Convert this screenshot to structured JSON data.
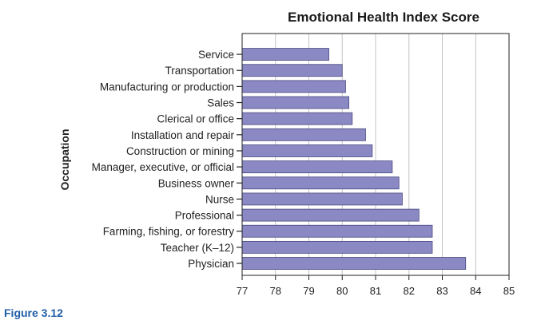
{
  "figure_caption": "Figure 3.12",
  "chart_data": {
    "type": "bar",
    "orientation": "horizontal",
    "title": "Emotional Health Index Score",
    "xlabel": "",
    "ylabel": "Occupation",
    "xlim": [
      77,
      85
    ],
    "x_ticks": [
      77,
      78,
      79,
      80,
      81,
      82,
      83,
      84,
      85
    ],
    "grid": "vertical",
    "bar_color": "#8b89c4",
    "bar_edge_color": "#4a4880",
    "categories": [
      "Service",
      "Transportation",
      "Manufacturing or production",
      "Sales",
      "Clerical or office",
      "Installation and repair",
      "Construction or mining",
      "Manager, executive, or official",
      "Business owner",
      "Nurse",
      "Professional",
      "Farming, fishing, or forestry",
      "Teacher (K–12)",
      "Physician"
    ],
    "values": [
      79.6,
      80.0,
      80.1,
      80.2,
      80.3,
      80.7,
      80.9,
      81.5,
      81.7,
      81.8,
      82.3,
      82.7,
      82.7,
      83.7
    ]
  }
}
